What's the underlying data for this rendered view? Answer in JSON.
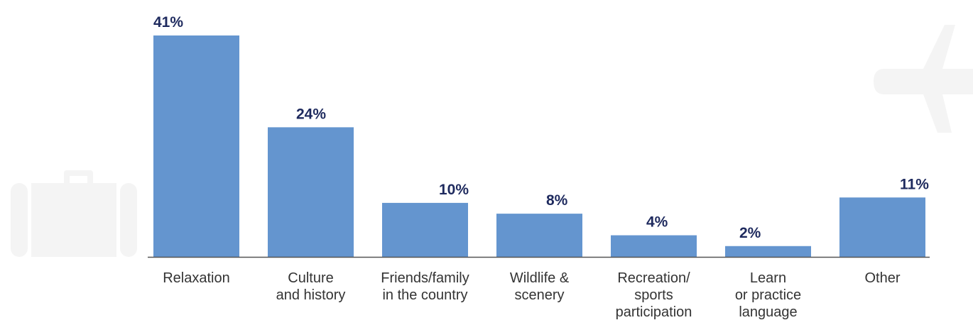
{
  "chart_data": {
    "type": "bar",
    "categories": [
      [
        "Relaxation"
      ],
      [
        "Culture",
        "and history"
      ],
      [
        "Friends/family",
        "in the country"
      ],
      [
        "Wildlife &",
        "scenery"
      ],
      [
        "Recreation/",
        "sports",
        "participation"
      ],
      [
        "Learn",
        "or practice",
        "language"
      ],
      [
        "Other"
      ]
    ],
    "values": [
      41,
      24,
      10,
      8,
      4,
      2,
      11
    ],
    "value_labels": [
      "41%",
      "24%",
      "10%",
      "8%",
      "4%",
      "2%",
      "11%"
    ],
    "ylim": [
      0,
      41
    ],
    "grid": false,
    "legend": "none",
    "colors": {
      "bar": "#6495cf",
      "value_label": "#1e2a5e",
      "category_label": "#333333",
      "axis": "#555555",
      "decoration": "#f4f4f4"
    }
  },
  "decorations": {
    "left_icon": "suitcase-icon",
    "right_icon": "airplane-icon"
  }
}
